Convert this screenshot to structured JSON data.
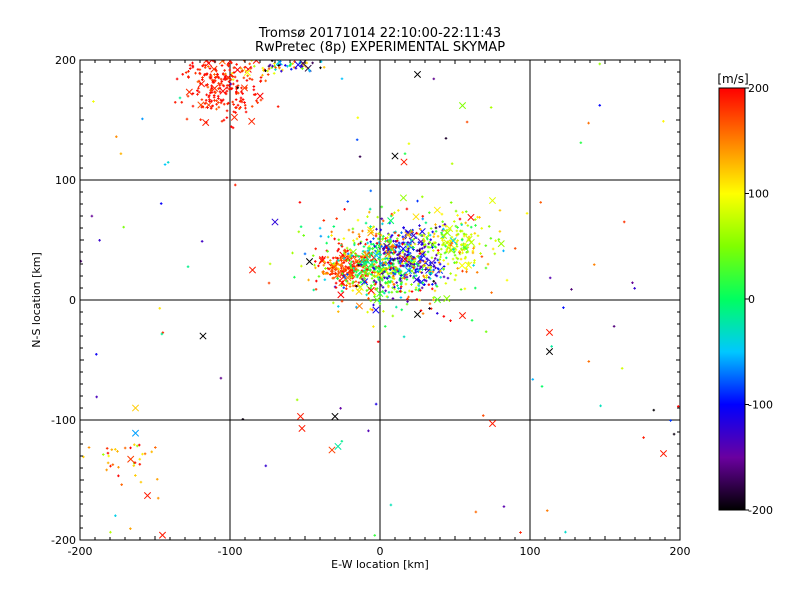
{
  "chart_data": {
    "type": "scatter",
    "title": "Tromsø 20171014 22:10:00-22:11:43",
    "subtitle": "RwPretec (8p) EXPERIMENTAL SKYMAP",
    "xlabel": "E-W location [km]",
    "ylabel": "N-S location [km]",
    "xlim": [
      -200,
      200
    ],
    "ylim": [
      -200,
      200
    ],
    "x_ticks": [
      "-200",
      "-100",
      "0",
      "100",
      "200"
    ],
    "y_ticks": [
      "-200",
      "-100",
      "0",
      "100",
      "200"
    ],
    "grid": true,
    "colorbar": {
      "label": "[m/s]",
      "range": [
        -200,
        200
      ],
      "ticks": [
        "-200",
        "-100",
        "0",
        "100",
        "200"
      ],
      "colormap": "rainbow"
    },
    "clusters": [
      {
        "x": -105,
        "y": 180,
        "sx": 12,
        "sy": 14,
        "n": 260,
        "v": 190,
        "vs": 12
      },
      {
        "x": -80,
        "y": 195,
        "sx": 15,
        "sy": 5,
        "n": 40,
        "v": 120,
        "vs": 30
      },
      {
        "x": -58,
        "y": 196,
        "sx": 10,
        "sy": 4,
        "n": 35,
        "v": -100,
        "vs": 80
      },
      {
        "x": -20,
        "y": 28,
        "sx": 10,
        "sy": 8,
        "n": 220,
        "v": 175,
        "vs": 25
      },
      {
        "x": 0,
        "y": 28,
        "sx": 10,
        "sy": 10,
        "n": 240,
        "v": 20,
        "vs": 30
      },
      {
        "x": 18,
        "y": 35,
        "sx": 12,
        "sy": 13,
        "n": 220,
        "v": -120,
        "vs": 25
      },
      {
        "x": 50,
        "y": 48,
        "sx": 12,
        "sy": 10,
        "n": 150,
        "v": 80,
        "vs": 30
      },
      {
        "x": 10,
        "y": 35,
        "sx": 28,
        "sy": 24,
        "n": 420,
        "v": 60,
        "vs": 110
      },
      {
        "x": -168,
        "y": -130,
        "sx": 12,
        "sy": 14,
        "n": 35,
        "v": 150,
        "vs": 40
      }
    ],
    "labeled_points": [
      {
        "x": 25,
        "y": 188,
        "v": -200
      },
      {
        "x": 55,
        "y": 162,
        "v": 50
      },
      {
        "x": 10,
        "y": 120,
        "v": -200
      },
      {
        "x": 16,
        "y": 115,
        "v": 190
      },
      {
        "x": -70,
        "y": 65,
        "v": -120
      },
      {
        "x": -85,
        "y": 25,
        "v": 190
      },
      {
        "x": -118,
        "y": -30,
        "v": -200
      },
      {
        "x": -47,
        "y": 32,
        "v": -200
      },
      {
        "x": -30,
        "y": -97,
        "v": -200
      },
      {
        "x": -53,
        "y": -97,
        "v": 190
      },
      {
        "x": -52,
        "y": -107,
        "v": 190
      },
      {
        "x": -32,
        "y": -125,
        "v": 175
      },
      {
        "x": -28,
        "y": -122,
        "v": -20
      },
      {
        "x": -163,
        "y": -90,
        "v": 120
      },
      {
        "x": -163,
        "y": -111,
        "v": -60
      },
      {
        "x": -155,
        "y": -163,
        "v": 190
      },
      {
        "x": -145,
        "y": -196,
        "v": 190
      },
      {
        "x": 113,
        "y": -27,
        "v": 190
      },
      {
        "x": 113,
        "y": -43,
        "v": -200
      },
      {
        "x": 75,
        "y": -103,
        "v": 190
      },
      {
        "x": 189,
        "y": -128,
        "v": 190
      },
      {
        "x": 25,
        "y": -12,
        "v": -200
      },
      {
        "x": 55,
        "y": -13,
        "v": 190
      }
    ]
  }
}
